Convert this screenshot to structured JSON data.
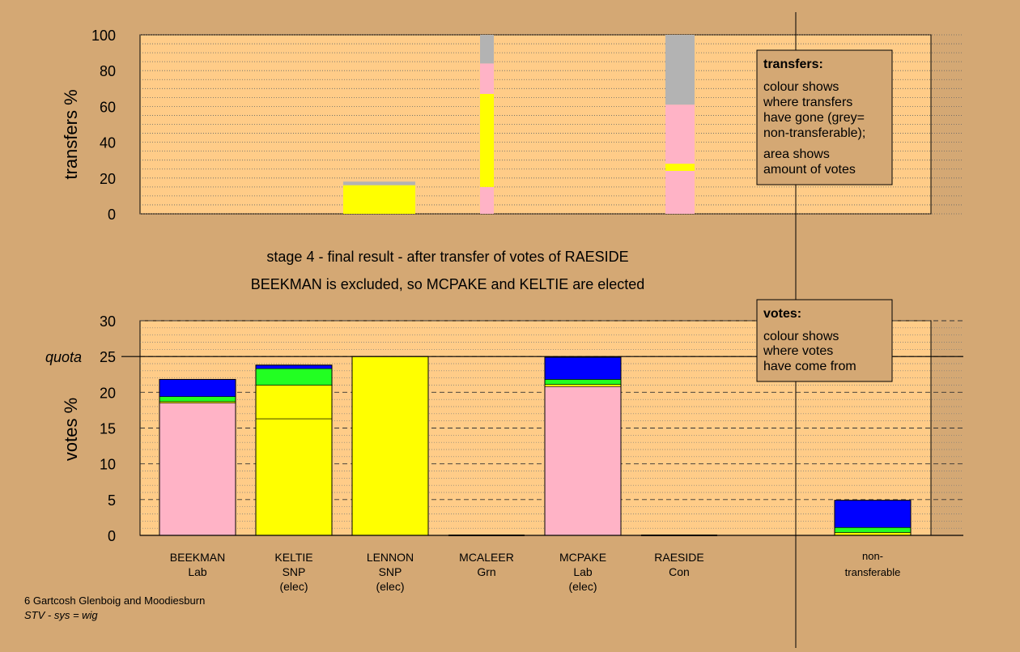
{
  "colors": {
    "background": "#d4a874",
    "plot_bg": "#ffcc88",
    "pink": "#ffb3c6",
    "yellow": "#ffff00",
    "green": "#22ff22",
    "blue": "#0000ff",
    "grey": "#b3b3b3"
  },
  "titles": {
    "line1": "stage 4 - final result - after transfer of votes of RAESIDE",
    "line2": "BEEKMAN is excluded, so MCPAKE and KELTIE are elected"
  },
  "footer": {
    "line1": "6 Gartcosh Glenboig and Moodiesburn",
    "line2": "STV - sys = wig"
  },
  "candidates": [
    {
      "name": "BEEKMAN",
      "party": "Lab",
      "note": ""
    },
    {
      "name": "KELTIE",
      "party": "SNP",
      "note": "(elec)"
    },
    {
      "name": "LENNON",
      "party": "SNP",
      "note": "(elec)"
    },
    {
      "name": "MCALEER",
      "party": "Grn",
      "note": ""
    },
    {
      "name": "MCPAKE",
      "party": "Lab",
      "note": "(elec)"
    },
    {
      "name": "RAESIDE",
      "party": "Con",
      "note": ""
    }
  ],
  "nontransferable_label": [
    "non-",
    "transferable"
  ],
  "legend_transfers": {
    "title": "transfers:",
    "lines1": [
      "colour shows",
      "where transfers",
      "have gone (grey=",
      "non-transferable);"
    ],
    "lines2": [
      "area shows",
      "amount of votes"
    ]
  },
  "legend_votes": {
    "title": "votes:",
    "lines": [
      "colour shows",
      "where votes",
      "have come from"
    ]
  },
  "chart_data": [
    {
      "type": "bar",
      "stacked": true,
      "ylabel": "transfers %",
      "ylim": [
        0,
        100
      ],
      "yticks": [
        0,
        20,
        40,
        60,
        80,
        100
      ],
      "grid": true,
      "transfer_columns": [
        {
          "label": "LENNON",
          "segments": [
            {
              "color": "yellow",
              "from": 0,
              "to": 16
            },
            {
              "color": "grey",
              "from": 16,
              "to": 18
            }
          ]
        },
        {
          "label": "MCALEER",
          "segments": [
            {
              "color": "pink",
              "from": 0,
              "to": 15
            },
            {
              "color": "yellow",
              "from": 15,
              "to": 67
            },
            {
              "color": "pink",
              "from": 67,
              "to": 84
            },
            {
              "color": "grey",
              "from": 84,
              "to": 100
            }
          ]
        },
        {
          "label": "RAESIDE",
          "segments": [
            {
              "color": "pink",
              "from": 0,
              "to": 24
            },
            {
              "color": "yellow",
              "from": 24,
              "to": 28
            },
            {
              "color": "pink",
              "from": 28,
              "to": 61
            },
            {
              "color": "grey",
              "from": 61,
              "to": 100
            }
          ]
        }
      ]
    },
    {
      "type": "bar",
      "stacked": true,
      "ylabel": "votes %",
      "ylim": [
        0,
        30
      ],
      "yticks": [
        0,
        5,
        10,
        15,
        20,
        25,
        30
      ],
      "quota": 25,
      "quota_label": "quota",
      "grid": true,
      "categories": [
        "BEEKMAN",
        "KELTIE",
        "LENNON",
        "MCALEER",
        "MCPAKE",
        "RAESIDE",
        "non-transferable"
      ],
      "bars": [
        {
          "category": "BEEKMAN",
          "segments": [
            {
              "color": "pink",
              "value": 18.5
            },
            {
              "color": "yellow",
              "value": 0.2
            },
            {
              "color": "green",
              "value": 0.7
            },
            {
              "color": "blue",
              "value": 2.4
            }
          ]
        },
        {
          "category": "KELTIE",
          "segments": [
            {
              "color": "yellow",
              "value": 16.3
            },
            {
              "color": "yellow",
              "value": 4.7
            },
            {
              "color": "green",
              "value": 2.3
            },
            {
              "color": "blue",
              "value": 0.5
            }
          ]
        },
        {
          "category": "LENNON",
          "segments": [
            {
              "color": "yellow",
              "value": 25.0
            }
          ]
        },
        {
          "category": "MCALEER",
          "segments": []
        },
        {
          "category": "MCPAKE",
          "segments": [
            {
              "color": "pink",
              "value": 20.8
            },
            {
              "color": "yellow",
              "value": 0.3
            },
            {
              "color": "green",
              "value": 0.7
            },
            {
              "color": "blue",
              "value": 3.1
            }
          ]
        },
        {
          "category": "RAESIDE",
          "segments": []
        },
        {
          "category": "non-transferable",
          "segments": [
            {
              "color": "yellow",
              "value": 0.4
            },
            {
              "color": "green",
              "value": 0.7
            },
            {
              "color": "blue",
              "value": 3.8
            }
          ]
        }
      ]
    }
  ]
}
